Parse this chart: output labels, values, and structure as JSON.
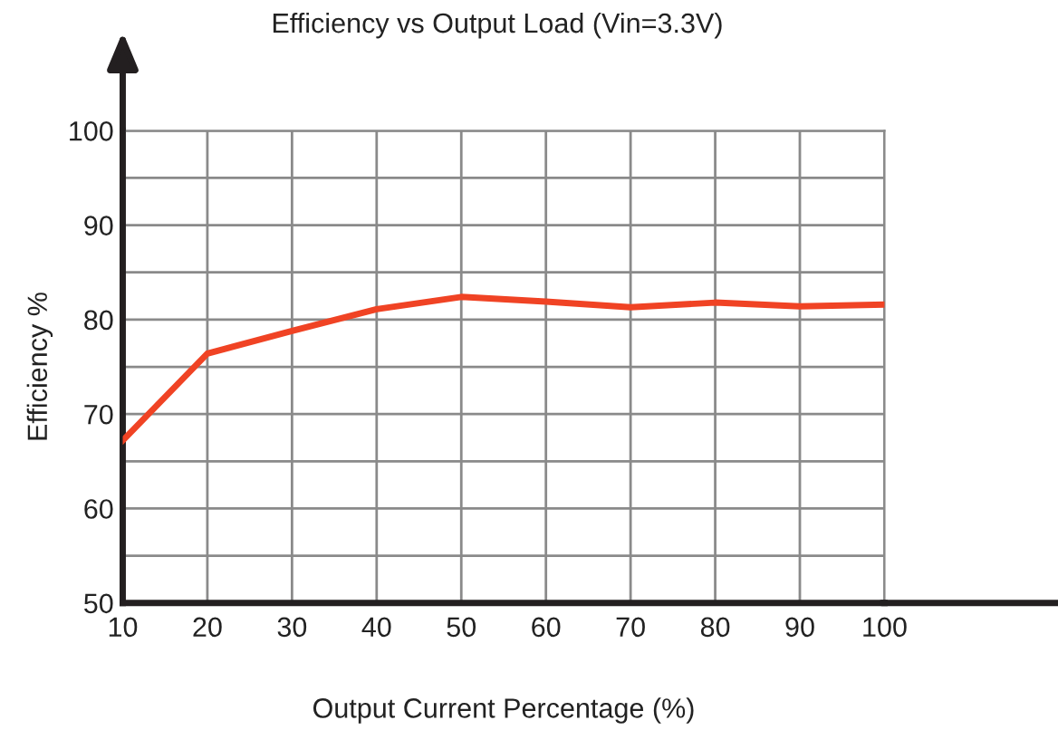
{
  "chart_data": {
    "type": "line",
    "title": "Efficiency vs Output Load (Vin=3.3V)",
    "xlabel": "Output Current Percentage (%)",
    "ylabel": "Efficiency %",
    "x": [
      10,
      20,
      30,
      40,
      50,
      60,
      70,
      80,
      90,
      100
    ],
    "series": [
      {
        "color": "#f04324",
        "values": [
          67.2,
          76.4,
          78.8,
          81.1,
          82.4,
          81.9,
          81.3,
          81.8,
          81.4,
          81.6
        ]
      }
    ],
    "xlim": [
      10,
      100
    ],
    "xticks": [
      10,
      20,
      30,
      40,
      50,
      60,
      70,
      80,
      90,
      100
    ],
    "ylim": [
      50,
      100
    ],
    "yticks": [
      50,
      {
        "value": 55,
        "label": null
      },
      60,
      {
        "value": 65,
        "label": null
      },
      70,
      {
        "value": 75,
        "label": null
      },
      80,
      {
        "value": 85,
        "label": null
      },
      90,
      {
        "value": 95,
        "label": null
      },
      100
    ],
    "grid": true,
    "marker": "none",
    "line_style": "solid"
  }
}
